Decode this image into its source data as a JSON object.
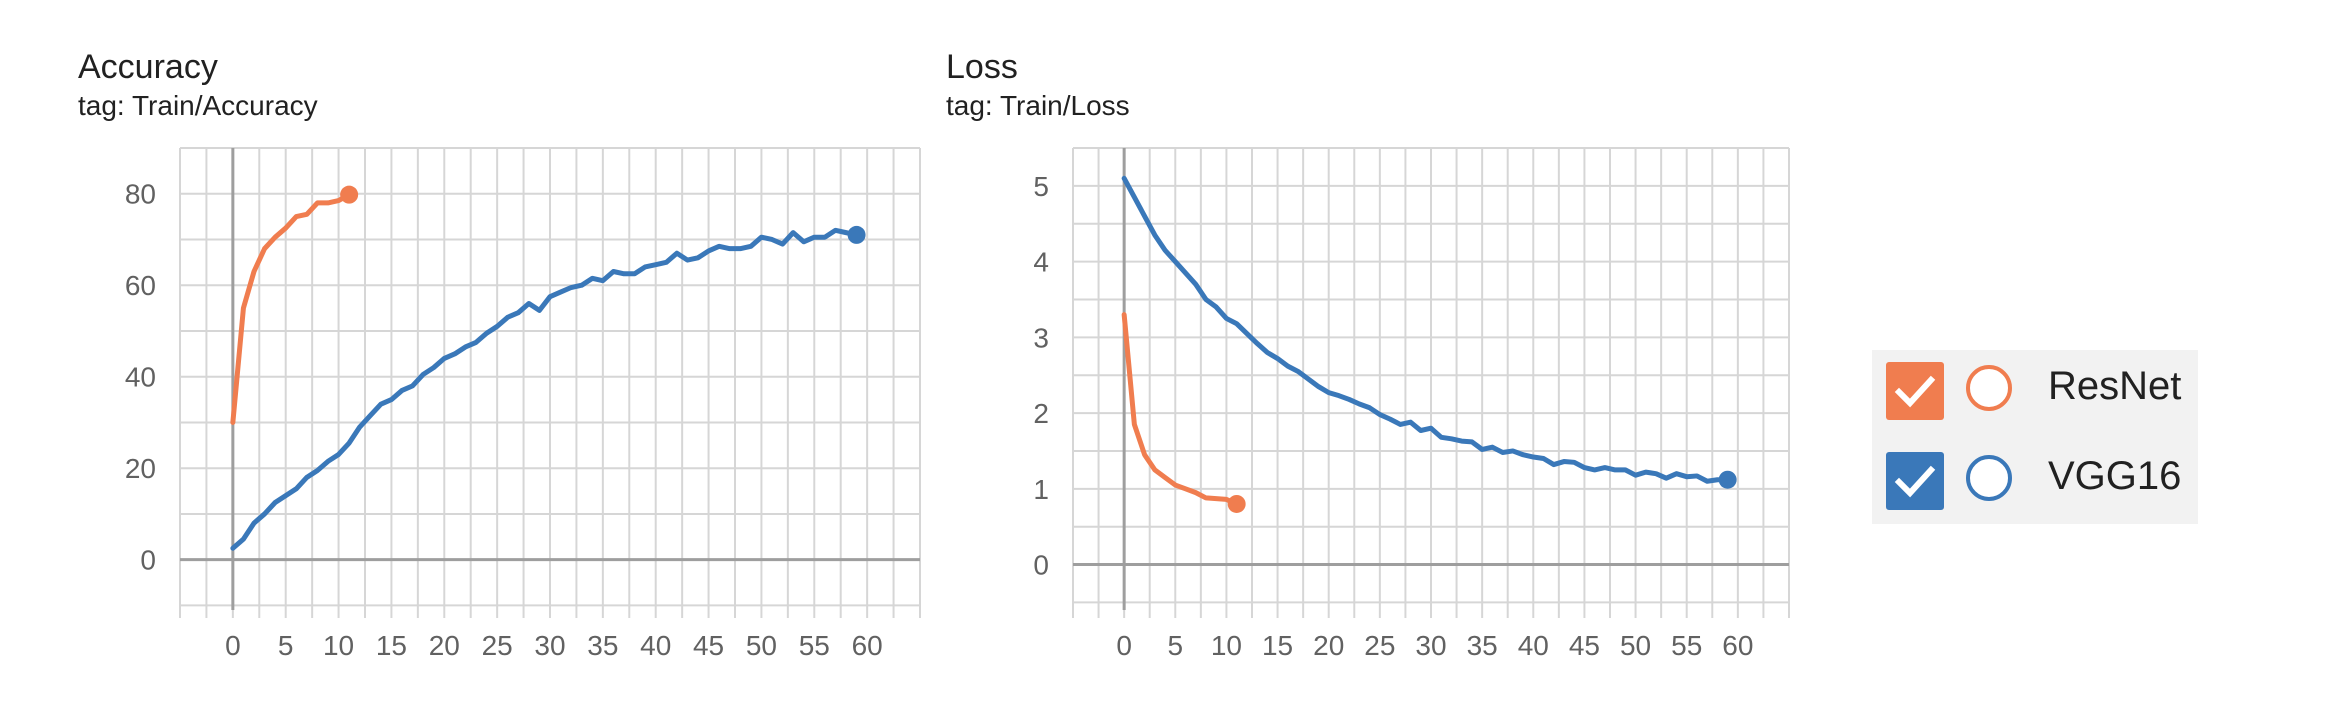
{
  "legend": {
    "items": [
      {
        "label": "ResNet",
        "color": "#f07d4f",
        "checked": true
      },
      {
        "label": "VGG16",
        "color": "#3a78b9",
        "checked": true
      }
    ]
  },
  "chart_data": [
    {
      "type": "line",
      "title": "Accuracy",
      "subtitle": "tag: Train/Accuracy",
      "xlabel": "",
      "ylabel": "",
      "xlim": [
        -5,
        65
      ],
      "ylim": [
        -11,
        90
      ],
      "x_ticks": [
        "0",
        "5",
        "10",
        "15",
        "20",
        "25",
        "30",
        "35",
        "40",
        "45",
        "50",
        "55",
        "60"
      ],
      "y_ticks": [
        "0",
        "20",
        "40",
        "60",
        "80"
      ],
      "grid": true,
      "series": [
        {
          "name": "ResNet",
          "color": "#f07d4f",
          "x": [
            0,
            1,
            2,
            3,
            4,
            5,
            6,
            7,
            8,
            9,
            10,
            11
          ],
          "y": [
            30,
            55,
            63,
            68,
            70.5,
            72.5,
            75,
            75.5,
            78,
            78,
            78.5,
            79.8
          ]
        },
        {
          "name": "VGG16",
          "color": "#3a78b9",
          "x": [
            0,
            1,
            2,
            3,
            4,
            5,
            6,
            7,
            8,
            9,
            10,
            11,
            12,
            13,
            14,
            15,
            16,
            17,
            18,
            19,
            20,
            21,
            22,
            23,
            24,
            25,
            26,
            27,
            28,
            29,
            30,
            31,
            32,
            33,
            34,
            35,
            36,
            37,
            38,
            39,
            40,
            41,
            42,
            43,
            44,
            45,
            46,
            47,
            48,
            49,
            50,
            51,
            52,
            53,
            54,
            55,
            56,
            57,
            58,
            59
          ],
          "y": [
            2.5,
            4.5,
            8,
            10,
            12.5,
            14,
            15.5,
            18,
            19.5,
            21.5,
            23,
            25.5,
            29,
            31.5,
            34,
            35,
            37,
            38,
            40.5,
            42,
            44,
            45,
            46.5,
            47.5,
            49.5,
            51,
            53,
            54,
            56,
            54.5,
            57.5,
            58.5,
            59.5,
            60,
            61.5,
            61,
            63,
            62.5,
            62.5,
            64,
            64.5,
            65,
            67,
            65.5,
            66,
            67.5,
            68.5,
            68,
            68,
            68.5,
            70.5,
            70,
            69,
            71.5,
            69.5,
            70.5,
            70.5,
            72,
            71.5,
            71
          ]
        }
      ]
    },
    {
      "type": "line",
      "title": "Loss",
      "subtitle": "tag: Train/Loss",
      "xlabel": "",
      "ylabel": "",
      "xlim": [
        -5,
        65
      ],
      "ylim": [
        -0.6,
        5.5
      ],
      "x_ticks": [
        "0",
        "5",
        "10",
        "15",
        "20",
        "25",
        "30",
        "35",
        "40",
        "45",
        "50",
        "55",
        "60"
      ],
      "y_ticks": [
        "0",
        "1",
        "2",
        "3",
        "4",
        "5"
      ],
      "grid": true,
      "series": [
        {
          "name": "ResNet",
          "color": "#f07d4f",
          "x": [
            0,
            1,
            2,
            3,
            4,
            5,
            6,
            7,
            8,
            9,
            10,
            11
          ],
          "y": [
            3.3,
            1.85,
            1.45,
            1.25,
            1.15,
            1.05,
            1.0,
            0.95,
            0.88,
            0.87,
            0.86,
            0.8
          ]
        },
        {
          "name": "VGG16",
          "color": "#3a78b9",
          "x": [
            0,
            1,
            2,
            3,
            4,
            5,
            6,
            7,
            8,
            9,
            10,
            11,
            12,
            13,
            14,
            15,
            16,
            17,
            18,
            19,
            20,
            21,
            22,
            23,
            24,
            25,
            26,
            27,
            28,
            29,
            30,
            31,
            32,
            33,
            34,
            35,
            36,
            37,
            38,
            39,
            40,
            41,
            42,
            43,
            44,
            45,
            46,
            47,
            48,
            49,
            50,
            51,
            52,
            53,
            54,
            55,
            56,
            57,
            58,
            59
          ],
          "y": [
            5.1,
            4.85,
            4.6,
            4.35,
            4.15,
            4.0,
            3.85,
            3.7,
            3.5,
            3.4,
            3.25,
            3.18,
            3.05,
            2.92,
            2.8,
            2.72,
            2.62,
            2.55,
            2.45,
            2.35,
            2.27,
            2.23,
            2.18,
            2.12,
            2.07,
            1.98,
            1.92,
            1.85,
            1.88,
            1.77,
            1.8,
            1.68,
            1.66,
            1.63,
            1.62,
            1.52,
            1.55,
            1.48,
            1.5,
            1.45,
            1.42,
            1.4,
            1.32,
            1.36,
            1.35,
            1.28,
            1.25,
            1.28,
            1.25,
            1.25,
            1.18,
            1.22,
            1.2,
            1.14,
            1.2,
            1.16,
            1.17,
            1.1,
            1.12,
            1.12
          ]
        }
      ]
    }
  ]
}
